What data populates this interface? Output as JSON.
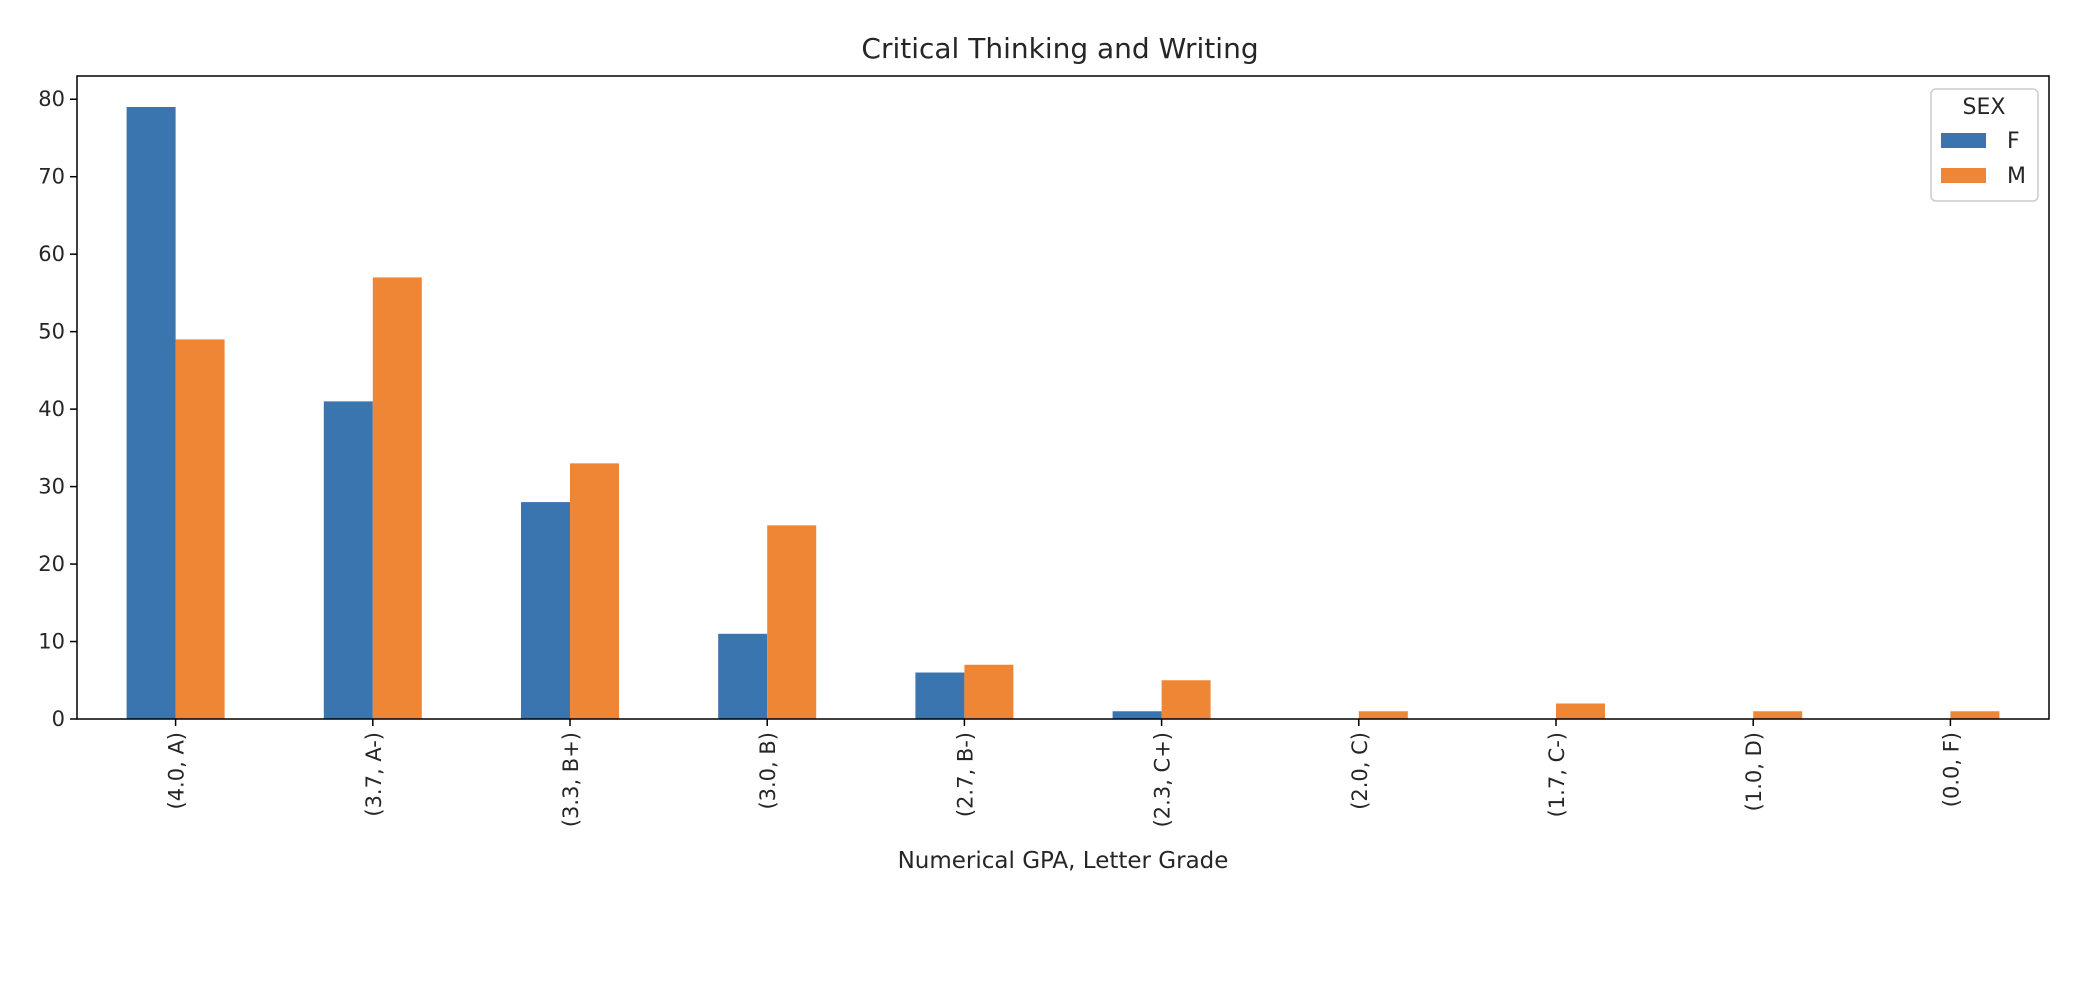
{
  "chart_data": {
    "type": "bar",
    "title": "Critical Thinking and Writing",
    "xlabel": "Numerical GPA, Letter Grade",
    "ylabel": "",
    "ylim": [
      0,
      83
    ],
    "yticks": [
      0,
      10,
      20,
      30,
      40,
      50,
      60,
      70,
      80
    ],
    "grid": false,
    "categories": [
      "(4.0, A)",
      "(3.7, A-)",
      "(3.3, B+)",
      "(3.0, B)",
      "(2.7, B-)",
      "(2.3, C+)",
      "(2.0, C)",
      "(1.7, C-)",
      "(1.0, D)",
      "(0.0, F)"
    ],
    "legend": {
      "title": "SEX",
      "placement": "top-right"
    },
    "series": [
      {
        "name": "F",
        "color": "#3a75b0",
        "values": [
          79,
          41,
          28,
          11,
          6,
          1,
          0,
          0,
          0,
          0
        ]
      },
      {
        "name": "M",
        "color": "#ef8636",
        "values": [
          49,
          57,
          33,
          25,
          7,
          5,
          1,
          2,
          1,
          1
        ]
      }
    ]
  }
}
